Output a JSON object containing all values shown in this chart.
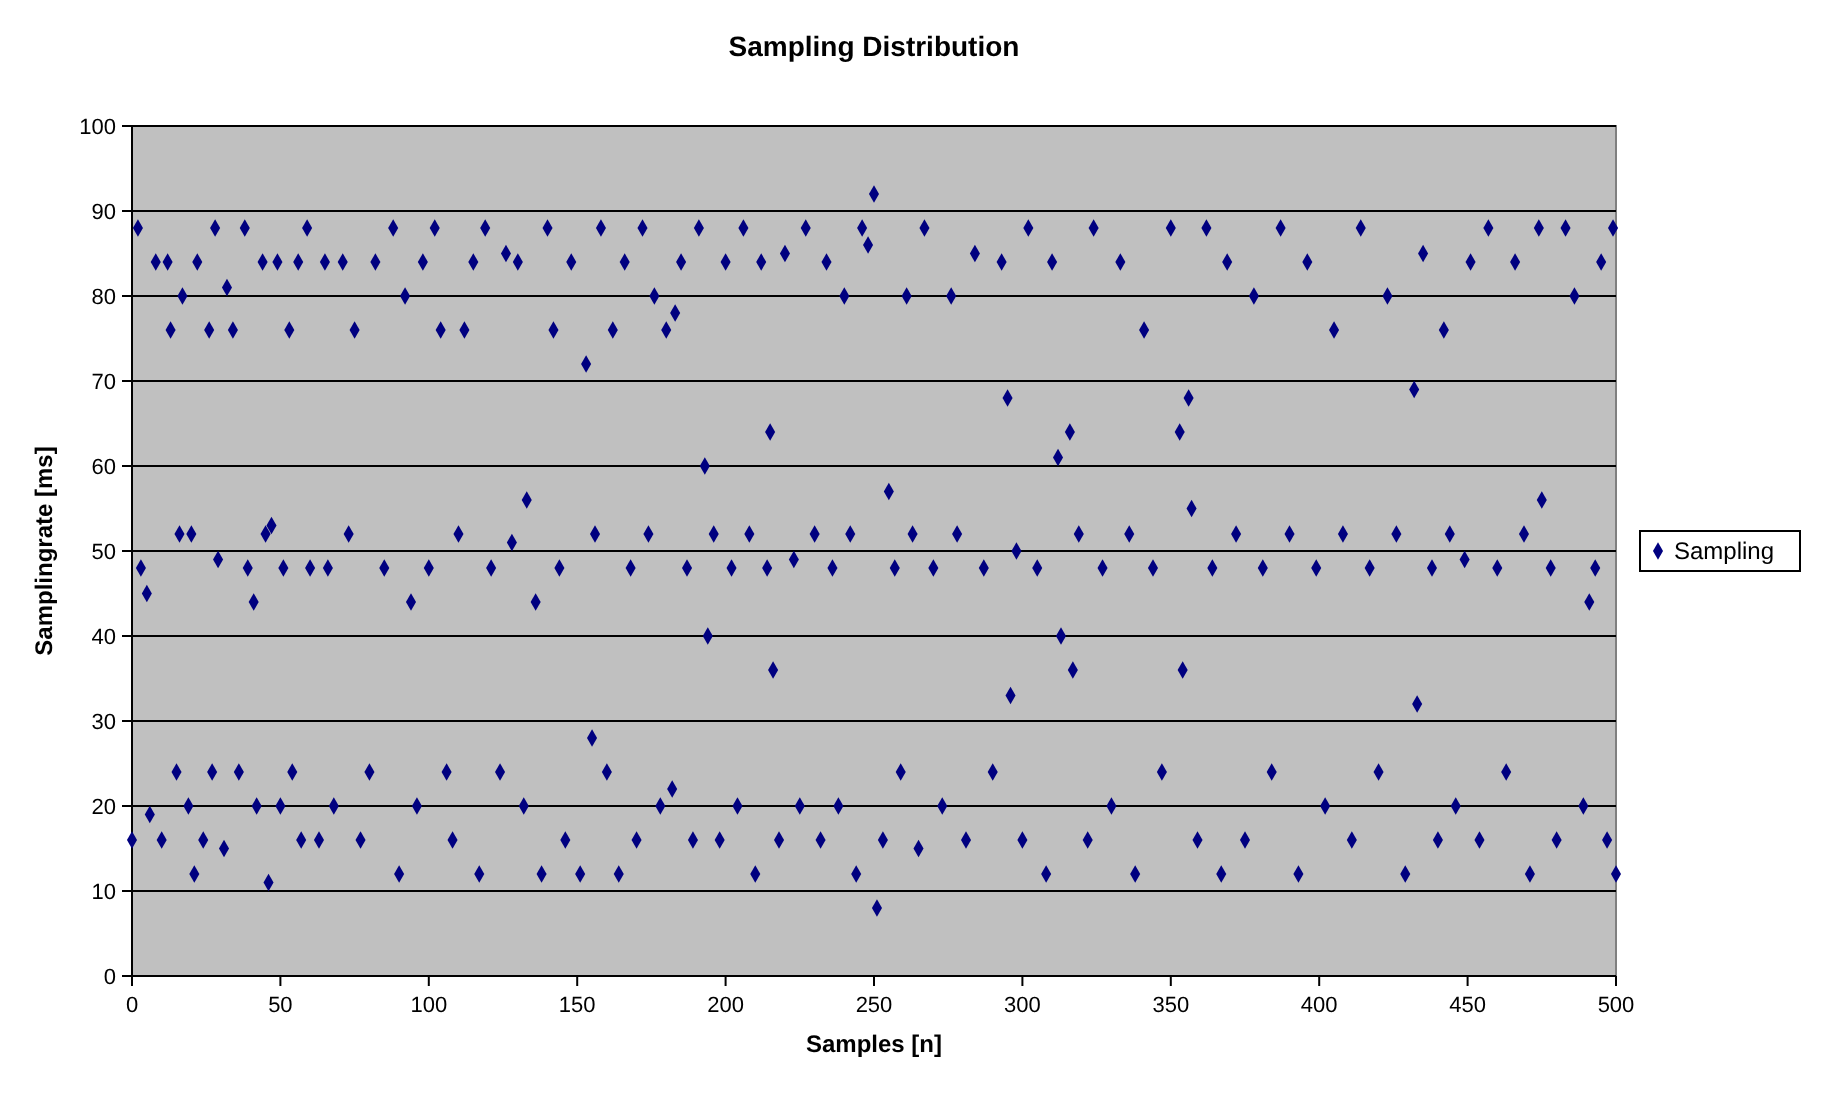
{
  "chart_data": {
    "type": "scatter",
    "title": "Sampling Distribution",
    "xlabel": "Samples [n]",
    "ylabel": "Samplingrate [ms]",
    "xlim": [
      0,
      500
    ],
    "xticks": [
      0,
      50,
      100,
      150,
      200,
      250,
      300,
      350,
      400,
      450,
      500
    ],
    "ylim": [
      0,
      100
    ],
    "yticks": [
      0,
      10,
      20,
      30,
      40,
      50,
      60,
      70,
      80,
      90,
      100
    ],
    "grid": "y",
    "legend": "right",
    "marker": "diamond",
    "series": [
      {
        "name": "Sampling",
        "color": "#000080",
        "x": [
          0,
          2,
          3,
          5,
          6,
          8,
          10,
          12,
          13,
          15,
          16,
          17,
          19,
          20,
          21,
          22,
          24,
          26,
          27,
          28,
          29,
          31,
          32,
          34,
          36,
          38,
          39,
          41,
          42,
          44,
          45,
          46,
          47,
          49,
          50,
          51,
          53,
          54,
          56,
          57,
          59,
          60,
          63,
          65,
          66,
          68,
          71,
          73,
          75,
          77,
          80,
          82,
          85,
          88,
          90,
          92,
          94,
          96,
          98,
          100,
          102,
          104,
          106,
          108,
          110,
          112,
          115,
          117,
          119,
          121,
          124,
          126,
          128,
          130,
          132,
          133,
          136,
          138,
          140,
          142,
          144,
          146,
          148,
          151,
          153,
          155,
          156,
          158,
          160,
          162,
          164,
          166,
          168,
          170,
          172,
          174,
          176,
          178,
          180,
          182,
          183,
          185,
          187,
          189,
          191,
          193,
          194,
          196,
          198,
          200,
          202,
          204,
          206,
          208,
          210,
          212,
          214,
          215,
          216,
          218,
          220,
          223,
          225,
          227,
          230,
          232,
          234,
          236,
          238,
          240,
          242,
          244,
          246,
          248,
          250,
          251,
          253,
          255,
          257,
          259,
          261,
          263,
          265,
          267,
          270,
          273,
          276,
          278,
          281,
          284,
          287,
          290,
          293,
          295,
          296,
          298,
          300,
          302,
          305,
          308,
          310,
          312,
          313,
          316,
          317,
          319,
          322,
          324,
          327,
          330,
          333,
          336,
          338,
          341,
          344,
          347,
          350,
          353,
          354,
          356,
          357,
          359,
          362,
          364,
          367,
          369,
          372,
          375,
          378,
          381,
          384,
          387,
          390,
          393,
          396,
          399,
          402,
          405,
          408,
          411,
          414,
          417,
          420,
          423,
          426,
          429,
          432,
          433,
          435,
          438,
          440,
          442,
          444,
          446,
          449,
          451,
          454,
          457,
          460,
          463,
          466,
          469,
          471,
          474,
          475,
          478,
          480,
          483,
          486,
          489,
          491,
          493,
          495,
          497,
          499,
          500
        ],
        "values": [
          16,
          88,
          48,
          45,
          19,
          84,
          16,
          84,
          76,
          24,
          52,
          80,
          20,
          52,
          12,
          84,
          16,
          76,
          24,
          88,
          49,
          15,
          81,
          76,
          24,
          88,
          48,
          44,
          20,
          84,
          52,
          11,
          53,
          84,
          20,
          48,
          76,
          24,
          84,
          16,
          88,
          48,
          16,
          84,
          48,
          20,
          84,
          52,
          76,
          16,
          24,
          84,
          48,
          88,
          12,
          80,
          44,
          20,
          84,
          48,
          88,
          76,
          24,
          16,
          52,
          76,
          84,
          12,
          88,
          48,
          24,
          85,
          51,
          84,
          20,
          56,
          44,
          12,
          88,
          76,
          48,
          16,
          84,
          12,
          72,
          28,
          52,
          88,
          24,
          76,
          12,
          84,
          48,
          16,
          88,
          52,
          80,
          20,
          76,
          22,
          78,
          84,
          48,
          16,
          88,
          60,
          40,
          52,
          16,
          84,
          48,
          20,
          88,
          52,
          12,
          84,
          48,
          64,
          36,
          16,
          85,
          49,
          20,
          88,
          52,
          16,
          84,
          48,
          20,
          80,
          52,
          12,
          88,
          86,
          92,
          8,
          16,
          57,
          48,
          24,
          80,
          52,
          15,
          88,
          48,
          20,
          80,
          52,
          16,
          85,
          48,
          24,
          84,
          68,
          33,
          50,
          16,
          88,
          48,
          12,
          84,
          61,
          40,
          64,
          36,
          52,
          16,
          88,
          48,
          20,
          84,
          52,
          12,
          76,
          48,
          24,
          88,
          64,
          36,
          68,
          55,
          16,
          88,
          48,
          12,
          84,
          52,
          16,
          80,
          48,
          24,
          88,
          52,
          12,
          84,
          48,
          20,
          76,
          52,
          16,
          88,
          48,
          24,
          80,
          52,
          12,
          69,
          32,
          85,
          48,
          16,
          76,
          52,
          20,
          49,
          84,
          16,
          88,
          48,
          24,
          84,
          52,
          12,
          88,
          56,
          48,
          16,
          88,
          80,
          20,
          44,
          48,
          84,
          16,
          88,
          12
        ]
      }
    ]
  }
}
